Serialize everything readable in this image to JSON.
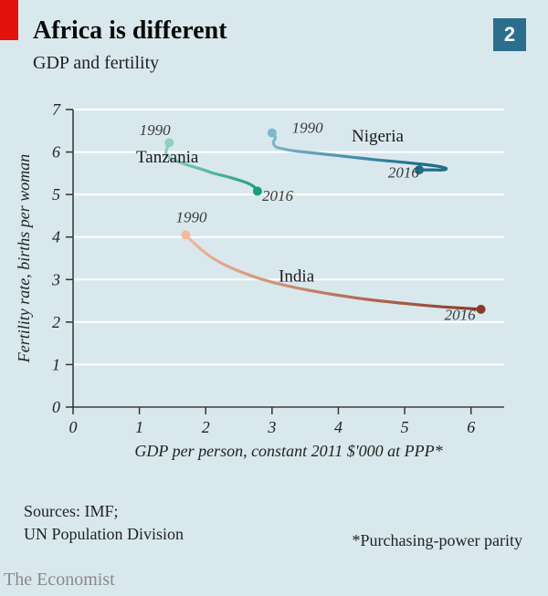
{
  "badge_number": "2",
  "title": "Africa is different",
  "subtitle": "GDP and fertility",
  "x_axis": {
    "label": "GDP per person, constant 2011 $'000 at PPP*",
    "min": 0,
    "max": 6.5,
    "ticks": [
      0,
      1,
      2,
      3,
      4,
      5,
      6
    ]
  },
  "y_axis": {
    "label": "Fertility rate, births per woman",
    "min": 0,
    "max": 7,
    "ticks": [
      0,
      1,
      2,
      3,
      4,
      5,
      6,
      7
    ]
  },
  "background_color": "#d9e8ed",
  "grid_color": "#ffffff",
  "axis_line_color": "#333333",
  "tick_mark_color": "#333333",
  "series": [
    {
      "name": "Tanzania",
      "label_pos": {
        "x": 0.95,
        "y": 5.75
      },
      "color_start": "#8fd0bd",
      "color_end": "#1a9e7c",
      "end_marker_color": "#1a9e7c",
      "points": [
        {
          "x": 1.45,
          "y": 6.22
        },
        {
          "x": 1.42,
          "y": 6.1
        },
        {
          "x": 1.4,
          "y": 5.97
        },
        {
          "x": 1.45,
          "y": 5.87
        },
        {
          "x": 1.55,
          "y": 5.8
        },
        {
          "x": 1.68,
          "y": 5.72
        },
        {
          "x": 1.82,
          "y": 5.65
        },
        {
          "x": 1.97,
          "y": 5.58
        },
        {
          "x": 2.12,
          "y": 5.5
        },
        {
          "x": 2.3,
          "y": 5.43
        },
        {
          "x": 2.48,
          "y": 5.35
        },
        {
          "x": 2.63,
          "y": 5.27
        },
        {
          "x": 2.73,
          "y": 5.18
        },
        {
          "x": 2.78,
          "y": 5.08
        }
      ],
      "year_start": "1990",
      "year_start_pos": {
        "x": 1.0,
        "y": 6.4
      },
      "year_end": "2016",
      "year_end_pos": {
        "x": 2.85,
        "y": 4.85
      }
    },
    {
      "name": "Nigeria",
      "label_pos": {
        "x": 4.2,
        "y": 6.25
      },
      "color_start": "#7fb7cc",
      "color_end": "#1f6d8c",
      "end_marker_color": "#1f6d8c",
      "points": [
        {
          "x": 3.0,
          "y": 6.45
        },
        {
          "x": 3.05,
          "y": 6.35
        },
        {
          "x": 3.02,
          "y": 6.22
        },
        {
          "x": 3.06,
          "y": 6.12
        },
        {
          "x": 3.15,
          "y": 6.08
        },
        {
          "x": 3.32,
          "y": 6.03
        },
        {
          "x": 3.55,
          "y": 5.99
        },
        {
          "x": 3.85,
          "y": 5.94
        },
        {
          "x": 4.2,
          "y": 5.88
        },
        {
          "x": 4.55,
          "y": 5.82
        },
        {
          "x": 4.9,
          "y": 5.77
        },
        {
          "x": 5.22,
          "y": 5.72
        },
        {
          "x": 5.48,
          "y": 5.67
        },
        {
          "x": 5.62,
          "y": 5.62
        },
        {
          "x": 5.58,
          "y": 5.58
        },
        {
          "x": 5.4,
          "y": 5.58
        },
        {
          "x": 5.22,
          "y": 5.58
        }
      ],
      "year_start": "1990",
      "year_start_pos": {
        "x": 3.3,
        "y": 6.45
      },
      "year_end": "2016",
      "year_end_pos": {
        "x": 4.75,
        "y": 5.4
      }
    },
    {
      "name": "India",
      "label_pos": {
        "x": 3.1,
        "y": 2.95
      },
      "color_start": "#f2b99a",
      "color_end": "#8a3a24",
      "end_marker_color": "#8a3a24",
      "points": [
        {
          "x": 1.7,
          "y": 4.05
        },
        {
          "x": 1.78,
          "y": 3.92
        },
        {
          "x": 1.88,
          "y": 3.78
        },
        {
          "x": 2.0,
          "y": 3.62
        },
        {
          "x": 2.14,
          "y": 3.47
        },
        {
          "x": 2.32,
          "y": 3.32
        },
        {
          "x": 2.55,
          "y": 3.17
        },
        {
          "x": 2.82,
          "y": 3.02
        },
        {
          "x": 3.15,
          "y": 2.88
        },
        {
          "x": 3.55,
          "y": 2.75
        },
        {
          "x": 4.0,
          "y": 2.63
        },
        {
          "x": 4.5,
          "y": 2.52
        },
        {
          "x": 5.05,
          "y": 2.43
        },
        {
          "x": 5.55,
          "y": 2.36
        },
        {
          "x": 5.95,
          "y": 2.32
        },
        {
          "x": 6.15,
          "y": 2.3
        }
      ],
      "year_start": "1990",
      "year_start_pos": {
        "x": 1.55,
        "y": 4.35
      },
      "year_end": "2016",
      "year_end_pos": {
        "x": 5.6,
        "y": 2.05
      }
    }
  ],
  "line_width": 3.2,
  "marker_radius": 5,
  "sources_line1": "Sources: IMF;",
  "sources_line2": "UN Population Division",
  "ppp_note": "*Purchasing-power parity",
  "credit": "The Economist"
}
